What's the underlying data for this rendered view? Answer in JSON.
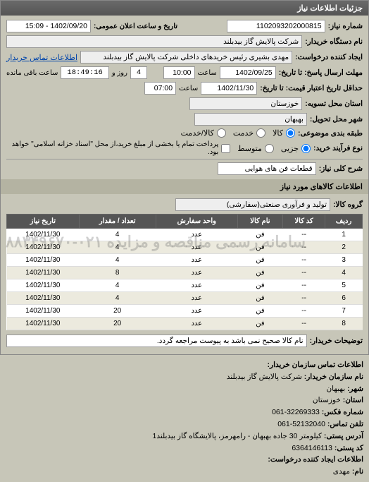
{
  "header": {
    "title": "جزئیات اطلاعات نیاز"
  },
  "top": {
    "req_no_label": "شماره نیاز:",
    "req_no": "1102093202000815",
    "ann_label": "تاریخ و ساعت اعلان عمومی:",
    "ann_value": "1402/09/20 - 15:09",
    "buyer_label": "نام دستگاه خریدار:",
    "buyer": "شرکت پالایش گاز بیدبلند",
    "creator_label": "ایجاد کننده درخواست:",
    "creator": "مهدی بشیری رئیس خریدهای داخلی شرکت پالایش گاز بیدبلند",
    "contact_link": "اطلاعات تماس خریدار",
    "deadline1_label": "مهلت ارسال پاسخ: تا تاریخ:",
    "deadline1_date": "1402/09/25",
    "deadline1_time_label": "ساعت",
    "deadline1_time": "10:00",
    "countdown_days": "4",
    "countdown_days_label": "روز و",
    "countdown_time": "18:49:16",
    "countdown_time_label": "ساعت باقی مانده",
    "deadline2_label": "حداقل تاریخ اعتبار قیمت: تا تاریخ:",
    "deadline2_date": "1402/11/30",
    "deadline2_time_label": "ساعت",
    "deadline2_time": "07:00",
    "province_label": "استان محل تسویه:",
    "province": "خوزستان",
    "city_label": "شهر محل تحویل:",
    "city": "بهبهان",
    "class_label": "طبقه بندی موضوعی:",
    "class_options": {
      "goods": "کالا",
      "service": "خدمت",
      "goods_service": "کالا/خدمت"
    },
    "class_selected": "goods",
    "process_label": "نوع فرآیند خرید:",
    "process_options": {
      "small": "جزیی",
      "medium": "متوسط"
    },
    "process_selected": "small",
    "process_note": "پرداخت تمام یا بخشی از مبلغ خرید،از محل \"اسناد خزانه اسلامی\" خواهد بود.",
    "process_note_checked": false,
    "desc_label": "شرح کلی نیاز:",
    "desc": "قطعات فن های هوایی"
  },
  "items_section": {
    "title": "اطلاعات کالاهای مورد نیاز",
    "group_label": "گروه کالا:",
    "group": "تولید و فرآوری صنعتی(سفارشی)",
    "columns": [
      "ردیف",
      "کد کالا",
      "نام کالا",
      "واحد سفارش",
      "تعداد / مقدار",
      "تاریخ نیاز"
    ],
    "rows": [
      [
        "1",
        "--",
        "فن",
        "عدد",
        "4",
        "1402/11/30"
      ],
      [
        "2",
        "--",
        "فن",
        "عدد",
        "4",
        "1402/11/30"
      ],
      [
        "3",
        "--",
        "فن",
        "عدد",
        "4",
        "1402/11/30"
      ],
      [
        "4",
        "--",
        "فن",
        "عدد",
        "8",
        "1402/11/30"
      ],
      [
        "5",
        "--",
        "فن",
        "عدد",
        "4",
        "1402/11/30"
      ],
      [
        "6",
        "--",
        "فن",
        "عدد",
        "4",
        "1402/11/30"
      ],
      [
        "7",
        "--",
        "فن",
        "عدد",
        "20",
        "1402/11/30"
      ],
      [
        "8",
        "--",
        "فن",
        "عدد",
        "20",
        "1402/11/30"
      ]
    ],
    "buyer_notes_label": "توضیحات خریدار:",
    "buyer_notes": "نام کالا صحیح نمی باشد به پیوست مراجعه گردد."
  },
  "footer": {
    "heading": "اطلاعات تماس سازمان خریدار:",
    "org_label": "نام سازمان خریدار:",
    "org": "شرکت پالایش گاز بیدبلند",
    "city_label": "شهر:",
    "city": "بهبهان",
    "province_label": "استان:",
    "province": "خوزستان",
    "fax_label": "شماره فکس:",
    "fax": "32269333-061",
    "phone_label": "تلفن تماس:",
    "phone": "52132040-061",
    "addr_label": "آدرس پستی:",
    "addr": "کیلومتر 30 جاده بهبهان - رامهرمز، پالایشگاه گاز بیدبلند1",
    "post_label": "کد پستی:",
    "post": "6364146113",
    "creator_heading": "اطلاعات ایجاد کننده درخواست:",
    "name_label": "نام:",
    "name": "مهدی"
  },
  "watermark": "سامانه رسمی مناقصه و مزایده\n۰۲۱-۸۸۳۴۹۶۷۰",
  "style": {
    "bg": "#c7c6b8",
    "header_bg": "#555555",
    "header_fg": "#ffffff",
    "field_bg": "#ffffff",
    "border": "#999999",
    "alt_row": "#eceade",
    "link_color": "#0044aa",
    "font_size_base": 11
  }
}
